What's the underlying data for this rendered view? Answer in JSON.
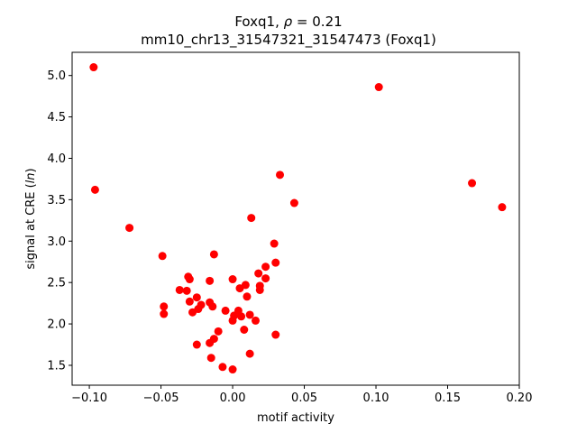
{
  "chart_data": {
    "type": "scatter",
    "title_line1_prefix": "Foxq1, ",
    "title_line1_rho": "ρ",
    "title_line1_suffix": " = 0.21",
    "title_line2": "mm10_chr13_31547321_31547473 (Foxq1)",
    "xlabel": "motif activity",
    "ylabel_prefix": "signal at CRE (",
    "ylabel_italic": "ln",
    "ylabel_suffix": ")",
    "xlim": [
      -0.112,
      0.2
    ],
    "ylim": [
      1.26,
      5.28
    ],
    "xticks": [
      -0.1,
      -0.05,
      0.0,
      0.05,
      0.1,
      0.15,
      0.2
    ],
    "xtick_labels": [
      "−0.10",
      "−0.05",
      "0.00",
      "0.05",
      "0.10",
      "0.15",
      "0.20"
    ],
    "yticks": [
      1.5,
      2.0,
      2.5,
      3.0,
      3.5,
      4.0,
      4.5,
      5.0
    ],
    "ytick_labels": [
      "1.5",
      "2.0",
      "2.5",
      "3.0",
      "3.5",
      "4.0",
      "4.5",
      "5.0"
    ],
    "marker_color": "#ff0000",
    "grid": false,
    "points": [
      {
        "x": -0.097,
        "y": 5.1
      },
      {
        "x": 0.102,
        "y": 4.86
      },
      {
        "x": -0.096,
        "y": 3.62
      },
      {
        "x": -0.072,
        "y": 3.16
      },
      {
        "x": 0.033,
        "y": 3.8
      },
      {
        "x": 0.043,
        "y": 3.46
      },
      {
        "x": 0.167,
        "y": 3.7
      },
      {
        "x": 0.188,
        "y": 3.41
      },
      {
        "x": 0.013,
        "y": 3.28
      },
      {
        "x": 0.029,
        "y": 2.97
      },
      {
        "x": -0.049,
        "y": 2.82
      },
      {
        "x": -0.013,
        "y": 2.84
      },
      {
        "x": 0.03,
        "y": 2.74
      },
      {
        "x": 0.023,
        "y": 2.69
      },
      {
        "x": 0.018,
        "y": 2.61
      },
      {
        "x": 0.023,
        "y": 2.55
      },
      {
        "x": -0.031,
        "y": 2.57
      },
      {
        "x": -0.03,
        "y": 2.54
      },
      {
        "x": -0.016,
        "y": 2.52
      },
      {
        "x": 0.0,
        "y": 2.54
      },
      {
        "x": 0.009,
        "y": 2.47
      },
      {
        "x": 0.005,
        "y": 2.43
      },
      {
        "x": 0.019,
        "y": 2.46
      },
      {
        "x": 0.019,
        "y": 2.41
      },
      {
        "x": -0.037,
        "y": 2.41
      },
      {
        "x": -0.032,
        "y": 2.4
      },
      {
        "x": -0.025,
        "y": 2.32
      },
      {
        "x": 0.01,
        "y": 2.33
      },
      {
        "x": -0.03,
        "y": 2.27
      },
      {
        "x": -0.016,
        "y": 2.26
      },
      {
        "x": -0.022,
        "y": 2.23
      },
      {
        "x": -0.014,
        "y": 2.21
      },
      {
        "x": -0.048,
        "y": 2.21
      },
      {
        "x": -0.024,
        "y": 2.18
      },
      {
        "x": -0.028,
        "y": 2.14
      },
      {
        "x": -0.005,
        "y": 2.16
      },
      {
        "x": 0.004,
        "y": 2.16
      },
      {
        "x": -0.048,
        "y": 2.12
      },
      {
        "x": 0.001,
        "y": 2.1
      },
      {
        "x": 0.006,
        "y": 2.09
      },
      {
        "x": 0.012,
        "y": 2.11
      },
      {
        "x": 0.016,
        "y": 2.04
      },
      {
        "x": 0.0,
        "y": 2.04
      },
      {
        "x": -0.01,
        "y": 1.91
      },
      {
        "x": 0.008,
        "y": 1.93
      },
      {
        "x": 0.03,
        "y": 1.87
      },
      {
        "x": -0.013,
        "y": 1.82
      },
      {
        "x": -0.016,
        "y": 1.77
      },
      {
        "x": -0.025,
        "y": 1.75
      },
      {
        "x": 0.012,
        "y": 1.64
      },
      {
        "x": -0.015,
        "y": 1.59
      },
      {
        "x": -0.007,
        "y": 1.48
      },
      {
        "x": 0.0,
        "y": 1.45
      }
    ]
  }
}
